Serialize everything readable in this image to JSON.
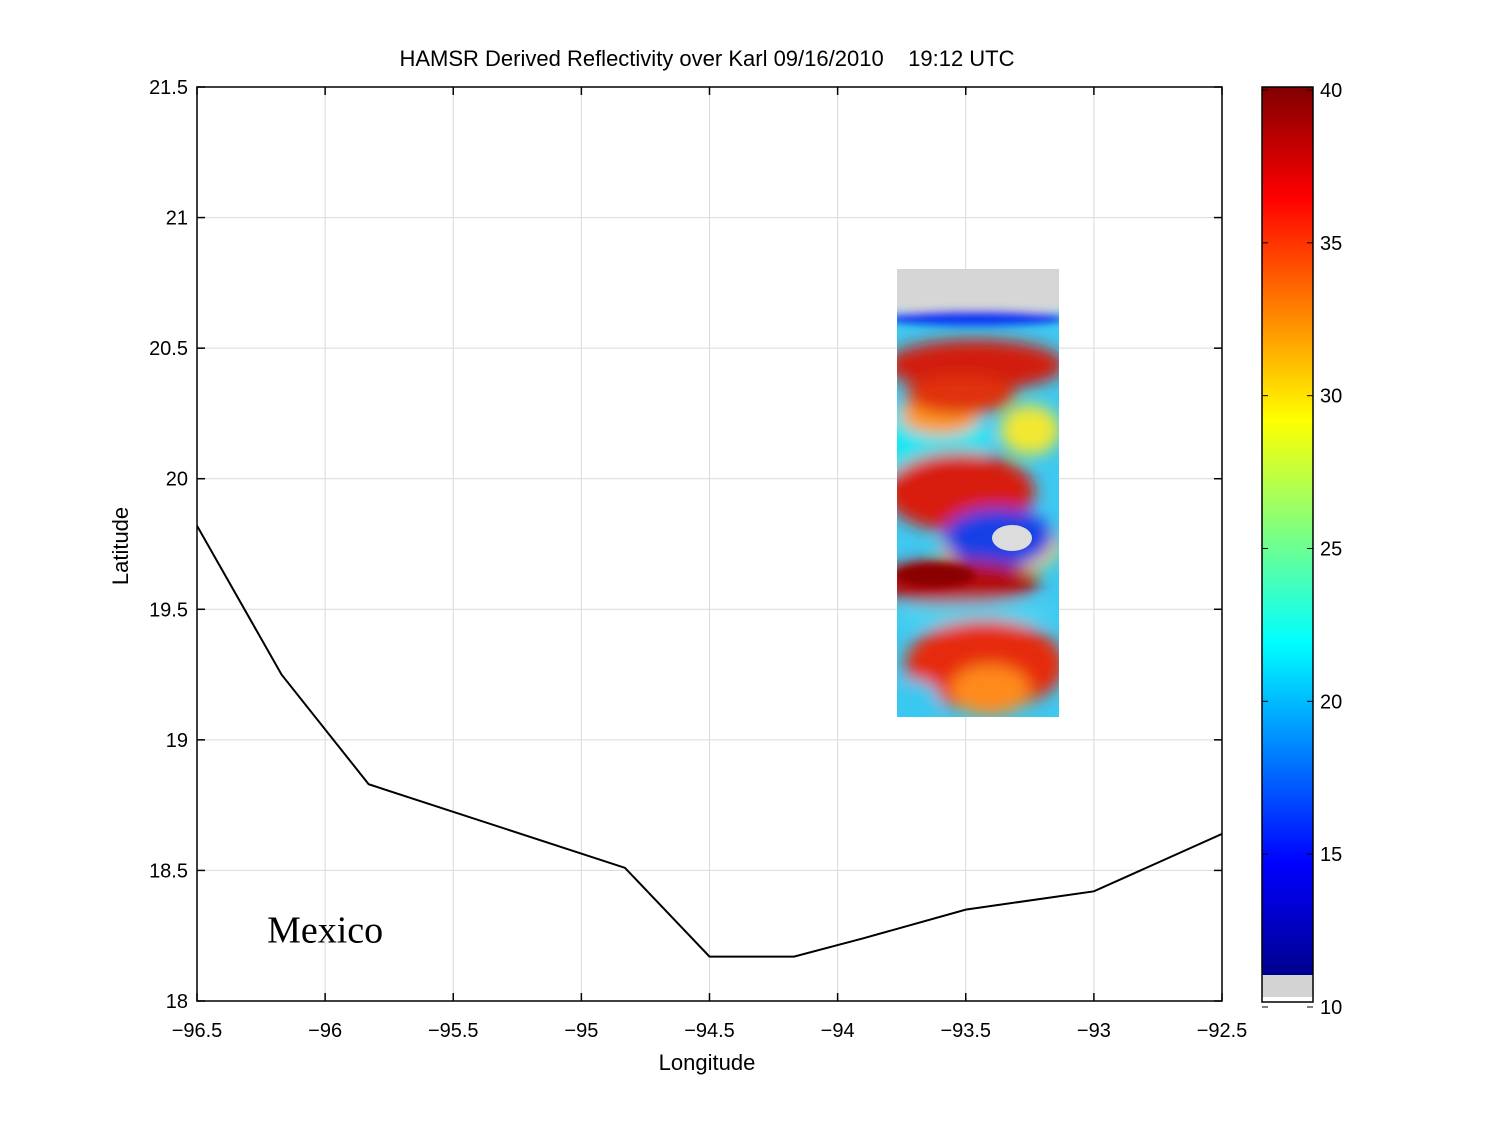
{
  "chart_data": {
    "type": "heatmap",
    "title": "HAMSR Derived Reflectivity over Karl 09/16/2010    19:12 UTC",
    "xlabel": "Longitude",
    "ylabel": "Latitude",
    "xlim": [
      -96.5,
      -92.5
    ],
    "ylim": [
      18,
      21.5
    ],
    "x_ticks": [
      -96.5,
      -96,
      -95.5,
      -95,
      -94.5,
      -94,
      -93.5,
      -93,
      -92.5
    ],
    "y_ticks": [
      18,
      18.5,
      19,
      19.5,
      20,
      20.5,
      21,
      21.5
    ],
    "grid": true,
    "colorbar": {
      "range": [
        10,
        40
      ],
      "ticks": [
        10,
        15,
        20,
        25,
        30,
        35,
        40
      ],
      "colormap": "jet",
      "below_range_color": "#d3d3d3"
    },
    "swath": {
      "lon_range": [
        -93.75,
        -93.12
      ],
      "lat_range": [
        19.1,
        20.8
      ],
      "features": [
        {
          "kind": "eye",
          "lon": -93.3,
          "lat": 19.78,
          "value": 10
        },
        {
          "kind": "eyewall",
          "lon": -93.35,
          "lat": 19.78,
          "value": 15
        },
        {
          "kind": "rainband",
          "lon": -93.55,
          "lat": 20.05,
          "value": 38
        },
        {
          "kind": "rainband",
          "lon": -93.6,
          "lat": 19.55,
          "value": 40
        },
        {
          "kind": "rainband",
          "lon": -93.45,
          "lat": 19.3,
          "value": 36
        },
        {
          "kind": "rainband",
          "lon": -93.45,
          "lat": 20.45,
          "value": 38
        },
        {
          "kind": "rainband",
          "lon": -93.5,
          "lat": 20.3,
          "value": 35
        }
      ]
    },
    "coastline": {
      "lon": [
        -96.5,
        -96.17,
        -95.83,
        -94.83,
        -94.5,
        -94.17,
        -93.9,
        -93.5,
        -93.0,
        -92.5
      ],
      "lat": [
        19.82,
        19.25,
        18.83,
        18.51,
        18.17,
        18.17,
        18.24,
        18.35,
        18.42,
        18.64
      ]
    },
    "annotations": [
      {
        "text": "Mexico",
        "lon": -96.0,
        "lat": 18.27
      }
    ]
  }
}
